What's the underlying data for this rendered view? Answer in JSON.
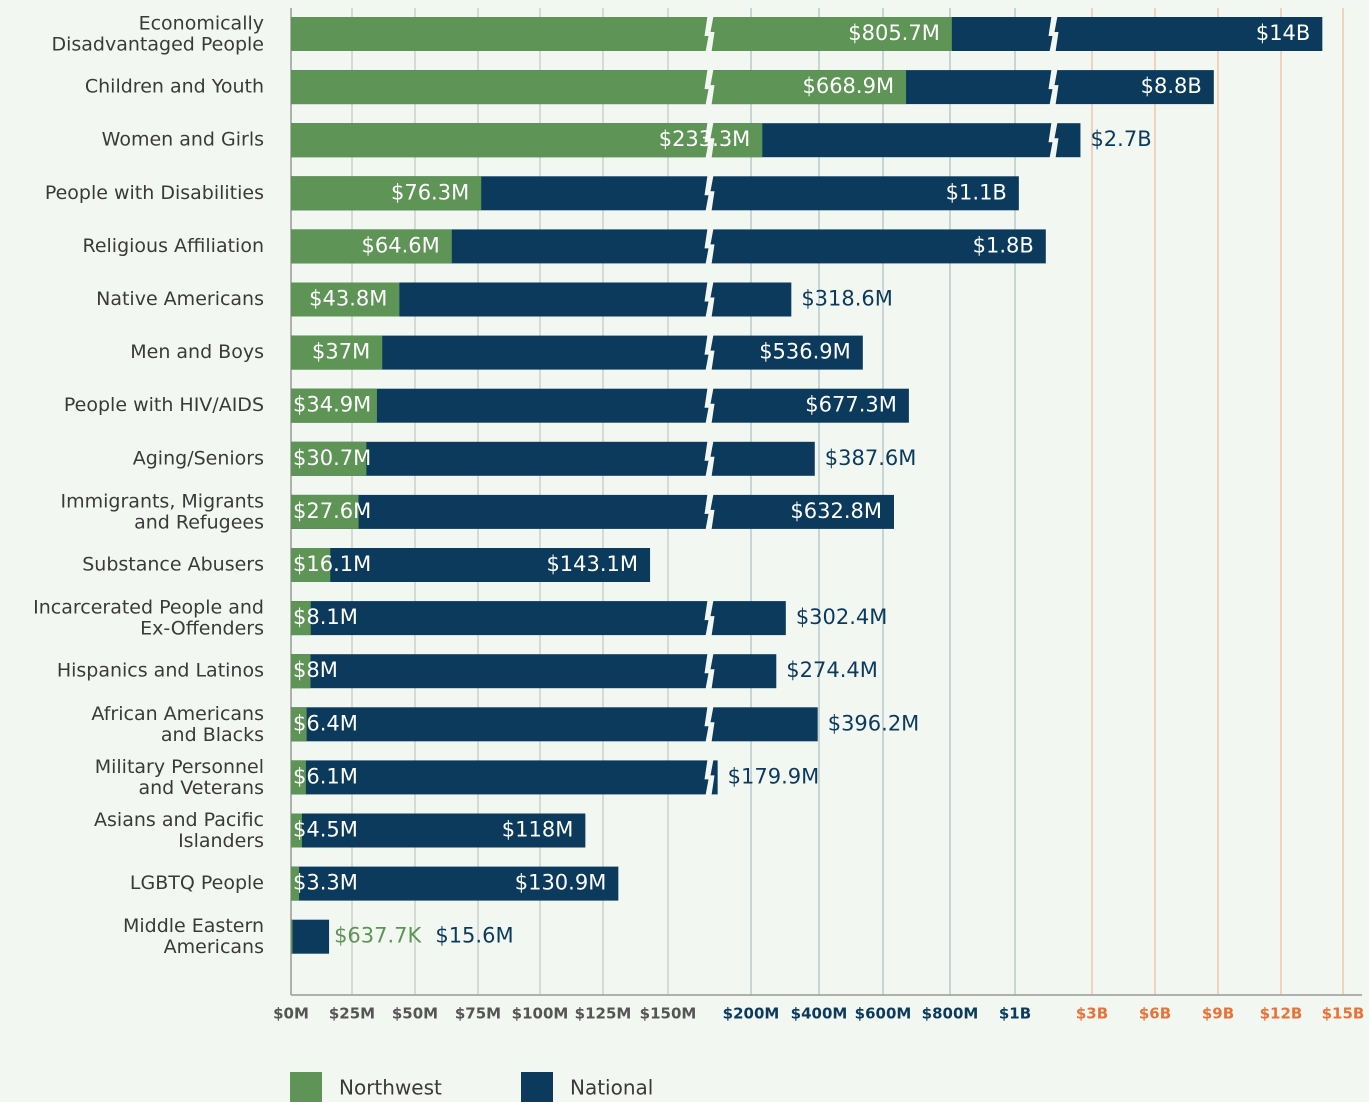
{
  "chart_data": {
    "type": "bar",
    "orientation": "horizontal",
    "categories": [
      "Economically\nDisadvantaged People",
      "Children and Youth",
      "Women and Girls",
      "People with Disabilities",
      "Religious Affiliation",
      "Native Americans",
      "Men and Boys",
      "People with HIV/AIDS",
      "Aging/Seniors",
      "Immigrants, Migrants\nand Refugees",
      "Substance Abusers",
      "Incarcerated People and\nEx-Offenders",
      "Hispanics and Latinos",
      "African Americans\nand Blacks",
      "Military Personnel\nand Veterans",
      "Asians and Pacific\nIslanders",
      "LGBTQ People",
      "Middle Eastern\nAmericans"
    ],
    "series": [
      {
        "name": "Northwest",
        "color": "#5f9457",
        "values": [
          805.7,
          668.9,
          233.3,
          76.3,
          64.6,
          43.8,
          37,
          34.9,
          30.7,
          27.6,
          16.1,
          8.1,
          8,
          6.4,
          6.1,
          4.5,
          3.3,
          0.6377
        ],
        "value_labels": [
          "$805.7M",
          "$668.9M",
          "$233.3M",
          "$76.3M",
          "$64.6M",
          "$43.8M",
          "$37M",
          "$34.9M",
          "$30.7M",
          "$27.6M",
          "$16.1M",
          "$8.1M",
          "$8M",
          "$6.4M",
          "$6.1M",
          "$4.5M",
          "$3.3M",
          "$637.7K"
        ]
      },
      {
        "name": "National",
        "color": "#0b3a5c",
        "values": [
          14000,
          8800,
          2700,
          1100,
          1800,
          318.6,
          536.9,
          677.3,
          387.6,
          632.8,
          143.1,
          302.4,
          274.4,
          396.2,
          179.9,
          118,
          130.9,
          15.6
        ],
        "value_labels": [
          "$14B",
          "$8.8B",
          "$2.7B",
          "$1.1B",
          "$1.8B",
          "$318.6M",
          "$536.9M",
          "$677.3M",
          "$387.6M",
          "$632.8M",
          "$143.1M",
          "$302.4M",
          "$274.4M",
          "$396.2M",
          "$179.9M",
          "$118M",
          "$130.9M",
          "$15.6M"
        ]
      }
    ],
    "xlim": [
      0,
      15000
    ],
    "xticks": [
      {
        "value": 0,
        "label": "$0M"
      },
      {
        "value": 25,
        "label": "$25M"
      },
      {
        "value": 50,
        "label": "$50M"
      },
      {
        "value": 75,
        "label": "$75M"
      },
      {
        "value": 100,
        "label": "$100M"
      },
      {
        "value": 125,
        "label": "$125M"
      },
      {
        "value": 150,
        "label": "$150M"
      },
      {
        "value": 200,
        "label": "$200M"
      },
      {
        "value": 400,
        "label": "$400M"
      },
      {
        "value": 600,
        "label": "$600M"
      },
      {
        "value": 800,
        "label": "$800M"
      },
      {
        "value": 1000,
        "label": "$1B"
      },
      {
        "value": 3000,
        "label": "$3B"
      },
      {
        "value": 6000,
        "label": "$6B"
      },
      {
        "value": 9000,
        "label": "$9B"
      },
      {
        "value": 12000,
        "label": "$12B"
      },
      {
        "value": 15000,
        "label": "$15B"
      }
    ],
    "xtick_colors": [
      "#555555",
      "#555555",
      "#555555",
      "#555555",
      "#555555",
      "#555555",
      "#555555",
      "#0b3a5c",
      "#0b3a5c",
      "#0b3a5c",
      "#0b3a5c",
      "#0b3a5c",
      "#e8733a",
      "#e8733a",
      "#e8733a",
      "#e8733a",
      "#e8733a"
    ],
    "axis_breaks": [
      [
        150,
        200
      ],
      [
        1000,
        3000
      ]
    ],
    "grid": true,
    "legend": "bottom-left"
  }
}
